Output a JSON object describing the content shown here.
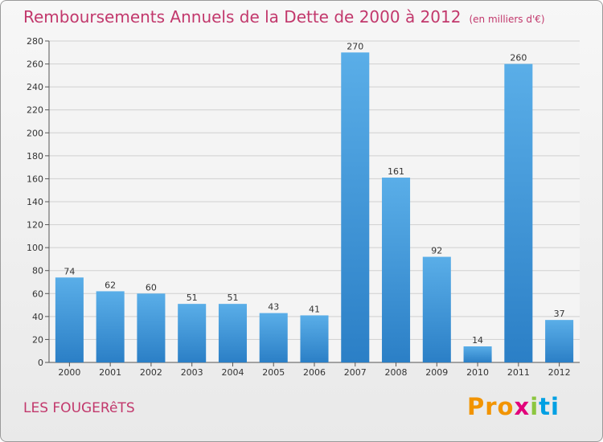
{
  "header": {
    "title": "Remboursements Annuels de la Dette de 2000 à 2012",
    "subtitle": "(en milliers d'€)"
  },
  "footer": {
    "town": "LES FOUGERêTS",
    "logo": [
      "Pro",
      "x",
      "i",
      "ti"
    ]
  },
  "colors": {
    "title": "#c2386c",
    "bar_light": "#5aaee8",
    "bar_dark": "#2b7fc6",
    "grid": "#d0d0d0"
  },
  "chart_data": {
    "type": "bar",
    "categories": [
      "2000",
      "2001",
      "2002",
      "2003",
      "2004",
      "2005",
      "2006",
      "2007",
      "2008",
      "2009",
      "2010",
      "2011",
      "2012"
    ],
    "values": [
      74,
      62,
      60,
      51,
      51,
      43,
      41,
      270,
      161,
      92,
      14,
      260,
      37
    ],
    "title": "Remboursements Annuels de la Dette de 2000 à 2012",
    "subtitle": "(en milliers d'€)",
    "ylim": [
      0,
      280
    ],
    "yticks": [
      0,
      20,
      40,
      60,
      80,
      100,
      120,
      140,
      160,
      180,
      200,
      220,
      240,
      260,
      280
    ],
    "grid": true,
    "data_labels": true
  }
}
